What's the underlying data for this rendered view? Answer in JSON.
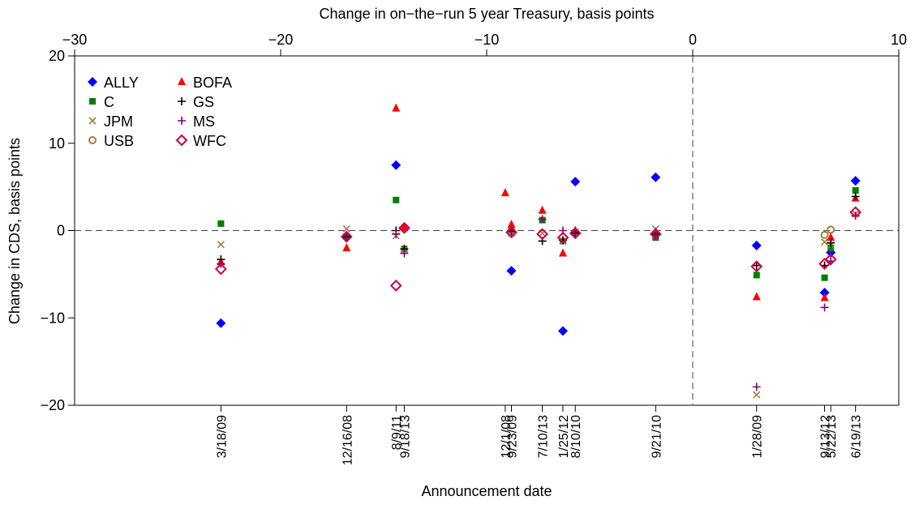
{
  "chart_data": {
    "type": "scatter",
    "title": "Change in on−the−run 5 year Treasury, basis points",
    "x_label": "Announcement date",
    "y_label": "Change in CDS, basis points",
    "x": [
      -22.9,
      -16.8,
      -14.4,
      -14.0,
      -9.1,
      -8.8,
      -7.3,
      -6.3,
      -5.7,
      -1.8,
      3.1,
      6.4,
      6.7,
      7.9
    ],
    "dates": [
      "3/18/09",
      "12/16/08",
      "8/9/11",
      "9/18/13",
      "12/1/08",
      "9/23/09",
      "7/10/13",
      "1/25/12",
      "8/10/10",
      "9/21/10",
      "1/28/09",
      "9/13/12",
      "5/22/13",
      "6/19/13"
    ],
    "xlim": [
      -30,
      10
    ],
    "xticks": [
      {
        "value": -30,
        "label": "−30"
      },
      {
        "value": -20,
        "label": "−20"
      },
      {
        "value": -10,
        "label": "−10"
      },
      0,
      10
    ],
    "ylim": [
      -20,
      20
    ],
    "yticks": [
      {
        "value": -20,
        "label": "−20"
      },
      {
        "value": -10,
        "label": "−10"
      },
      0,
      10,
      20
    ],
    "hline": 0,
    "vline": 0,
    "legend": "upper-left",
    "series": [
      {
        "name": "ALLY",
        "color": "#0000ff",
        "marker": "diamond",
        "values": [
          -10.6,
          -0.6,
          7.5,
          0.3,
          null,
          -4.6,
          null,
          -11.5,
          5.6,
          6.1,
          -1.7,
          -7.1,
          -2.5,
          5.7
        ]
      },
      {
        "name": "C",
        "color": "#008000",
        "marker": "square",
        "values": [
          0.8,
          -0.7,
          3.5,
          -2.1,
          null,
          -0.1,
          1.2,
          -1.2,
          -0.2,
          -0.8,
          -5.1,
          -5.4,
          -2.0,
          4.6
        ]
      },
      {
        "name": "JPM",
        "color": "#a08040",
        "marker": "x",
        "values": [
          -1.6,
          0.2,
          -0.6,
          -2.2,
          null,
          -0.3,
          -0.3,
          -1.2,
          -0.2,
          0.2,
          -18.8,
          -1.3,
          -1.7,
          1.9
        ]
      },
      {
        "name": "USB",
        "color": "#a08040",
        "marker": "circle",
        "values": [
          null,
          null,
          null,
          0.3,
          null,
          0.0,
          null,
          null,
          null,
          null,
          null,
          -0.5,
          0.1,
          null
        ]
      },
      {
        "name": "BOFA",
        "color": "#ff0000",
        "marker": "triangle",
        "values": [
          -3.6,
          -2.0,
          14.0,
          0.4,
          4.3,
          0.7,
          2.3,
          -2.6,
          0.0,
          -0.2,
          -7.6,
          -7.7,
          -0.8,
          3.7
        ]
      },
      {
        "name": "GS",
        "color": "#000000",
        "marker": "plus",
        "values": [
          -3.3,
          -0.7,
          0.0,
          -2.1,
          null,
          -0.1,
          -1.2,
          -1.1,
          -0.3,
          -0.4,
          -4.0,
          -4.0,
          -1.4,
          3.9
        ]
      },
      {
        "name": "MS",
        "color": "#800080",
        "marker": "plus",
        "values": [
          -3.8,
          -0.6,
          -0.4,
          -2.6,
          null,
          0.0,
          1.3,
          0.0,
          -0.1,
          -0.3,
          -17.9,
          -8.8,
          -3.5,
          1.7
        ]
      },
      {
        "name": "WFC",
        "color": "#cc0044",
        "marker": "odiamond",
        "values": [
          -4.4,
          -0.7,
          -6.3,
          0.3,
          null,
          -0.2,
          -0.4,
          -0.8,
          -0.3,
          -0.4,
          -4.1,
          -3.8,
          -3.3,
          2.1
        ]
      }
    ]
  }
}
